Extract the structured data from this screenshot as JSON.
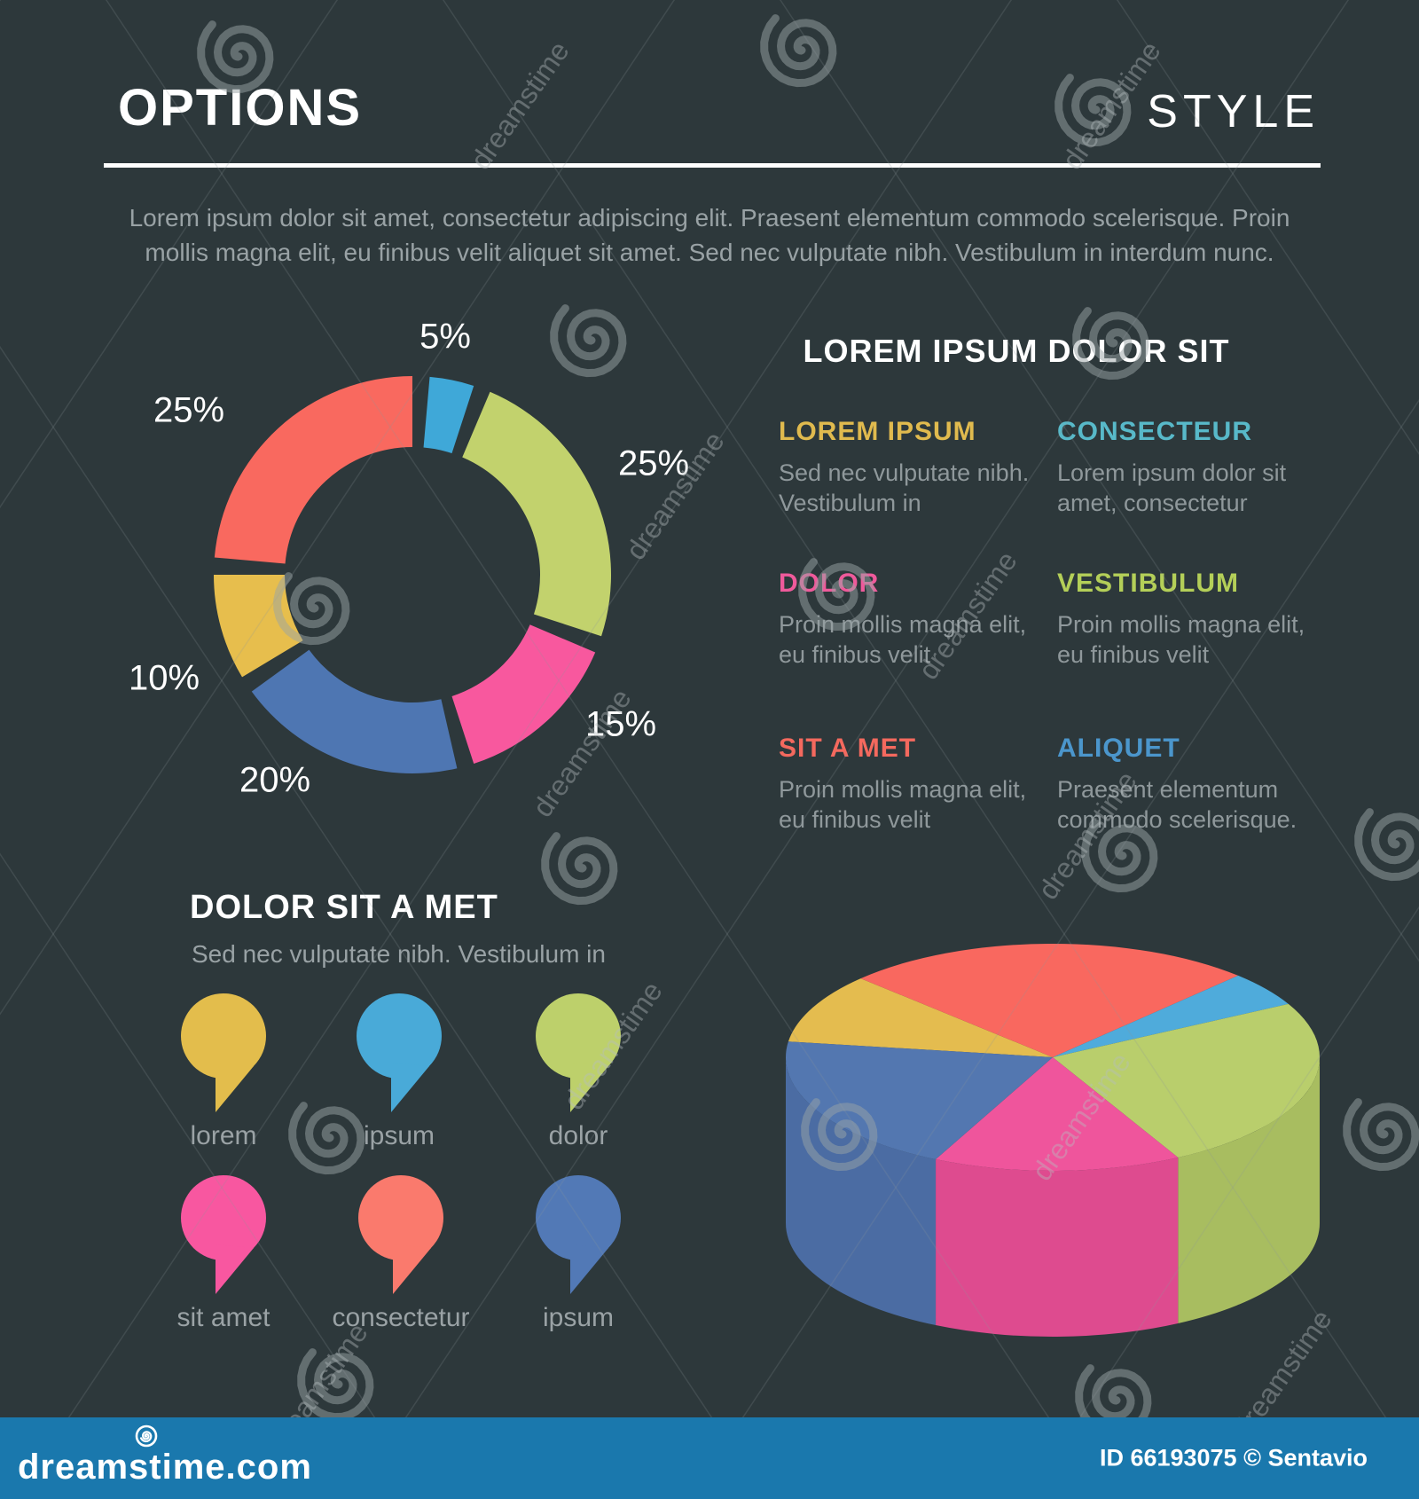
{
  "header": {
    "title_left": "OPTIONS",
    "title_right": "STYLE",
    "intro_line1": "Lorem ipsum dolor sit amet, consectetur adipiscing elit. Praesent elementum commodo scelerisque. Proin",
    "intro_line2": "mollis magna elit, eu finibus velit aliquet sit amet. Sed nec vulputate nibh. Vestibulum in interdum nunc."
  },
  "details": {
    "heading": "LOREM IPSUM DOLOR SIT",
    "items": [
      {
        "label": "LOREM IPSUM",
        "color": "#e0ba4e",
        "body": "Sed nec vulputate nibh. Vestibulum in"
      },
      {
        "label": "CONSECTEUR",
        "color": "#58b9c9",
        "body": "Lorem ipsum dolor sit amet, consectetur"
      },
      {
        "label": "DOLOR",
        "color": "#ef5a9b",
        "body": "Proin mollis magna elit, eu finibus velit"
      },
      {
        "label": "VESTIBULUM",
        "color": "#b4cf58",
        "body": "Proin mollis magna elit, eu finibus velit"
      },
      {
        "label": "SIT A MET",
        "color": "#f4695e",
        "body": "Proin mollis magna elit, eu finibus velit"
      },
      {
        "label": "ALIQUET",
        "color": "#4b96cc",
        "body": "Praesent elementum commodo scelerisque."
      }
    ]
  },
  "legend": {
    "heading": "DOLOR SIT A MET",
    "subtitle": "Sed nec vulputate nibh. Vestibulum in",
    "items": [
      {
        "label": "lorem",
        "color": "#e3bd4c"
      },
      {
        "label": "ipsum",
        "color": "#49aad8"
      },
      {
        "label": "dolor",
        "color": "#bdd06b"
      },
      {
        "label": "sit amet",
        "color": "#f857a0"
      },
      {
        "label": "consectetur",
        "color": "#fa7a6d"
      },
      {
        "label": "ipsum",
        "color": "#5279b6"
      }
    ]
  },
  "chart_data": [
    {
      "type": "pie",
      "variant": "donut",
      "title": "",
      "segments": [
        {
          "label": "5%",
          "value": 5,
          "color": "#3fa8d8"
        },
        {
          "label": "25%",
          "value": 25,
          "color": "#c2d26d"
        },
        {
          "label": "15%",
          "value": 15,
          "color": "#f8589e"
        },
        {
          "label": "20%",
          "value": 20,
          "color": "#4e76b2"
        },
        {
          "label": "10%",
          "value": 10,
          "color": "#e7be4d"
        },
        {
          "label": "25%",
          "value": 25,
          "color": "#f9695f"
        }
      ],
      "start_angle_deg": 0,
      "clockwise": true,
      "gap_deg": 5,
      "legend_position": "around"
    },
    {
      "type": "pie",
      "variant": "3d",
      "title": "",
      "segments": [
        {
          "name": "yellow",
          "value": 10,
          "color": "#e4bc4f"
        },
        {
          "name": "red",
          "value": 25,
          "color": "#f9685f"
        },
        {
          "name": "light-blue",
          "value": 5,
          "color": "#4fabdb"
        },
        {
          "name": "green",
          "value": 25,
          "color": "#b9ce6c",
          "side_color": "#a8bd60"
        },
        {
          "name": "pink",
          "value": 15,
          "color": "#ef559c",
          "side_color": "#de4b8f"
        },
        {
          "name": "steel-blue",
          "value": 20,
          "color": "#5377b0",
          "side_color": "#4b6ca3"
        }
      ],
      "start_angle_deg": 188,
      "clockwise": true
    }
  ],
  "watermark": {
    "text": "dreamstime",
    "bar": {
      "logo": "dreamstime.com",
      "credit": "ID 66193075 © Sentavio",
      "background": "#1a78ad"
    }
  }
}
